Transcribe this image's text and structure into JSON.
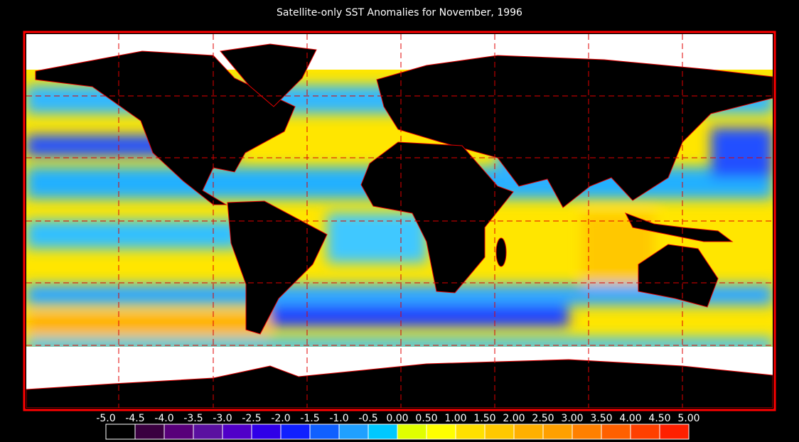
{
  "title": "Satellite-only SST Anomalies for November, 1996",
  "colorbar": {
    "labels": [
      "-5.0",
      "-4.5",
      "-4.0",
      "-3.5",
      "-3.0",
      "-2.5",
      "-2.0",
      "-1.5",
      "-1.0",
      "-0.5",
      "0.00",
      "0.50",
      "1.00",
      "1.50",
      "2.00",
      "2.50",
      "3.00",
      "3.50",
      "4.00",
      "4.50",
      "5.00"
    ],
    "colors": [
      "#000000",
      "#3a0040",
      "#58007a",
      "#5a10a0",
      "#5000c8",
      "#3000e8",
      "#1020ff",
      "#1060ff",
      "#20a0ff",
      "#00c8ff",
      "#e0ff00",
      "#ffff00",
      "#ffe000",
      "#ffc800",
      "#ffb000",
      "#ffa000",
      "#ff8000",
      "#ff6000",
      "#ff4000",
      "#ff2000"
    ]
  }
}
